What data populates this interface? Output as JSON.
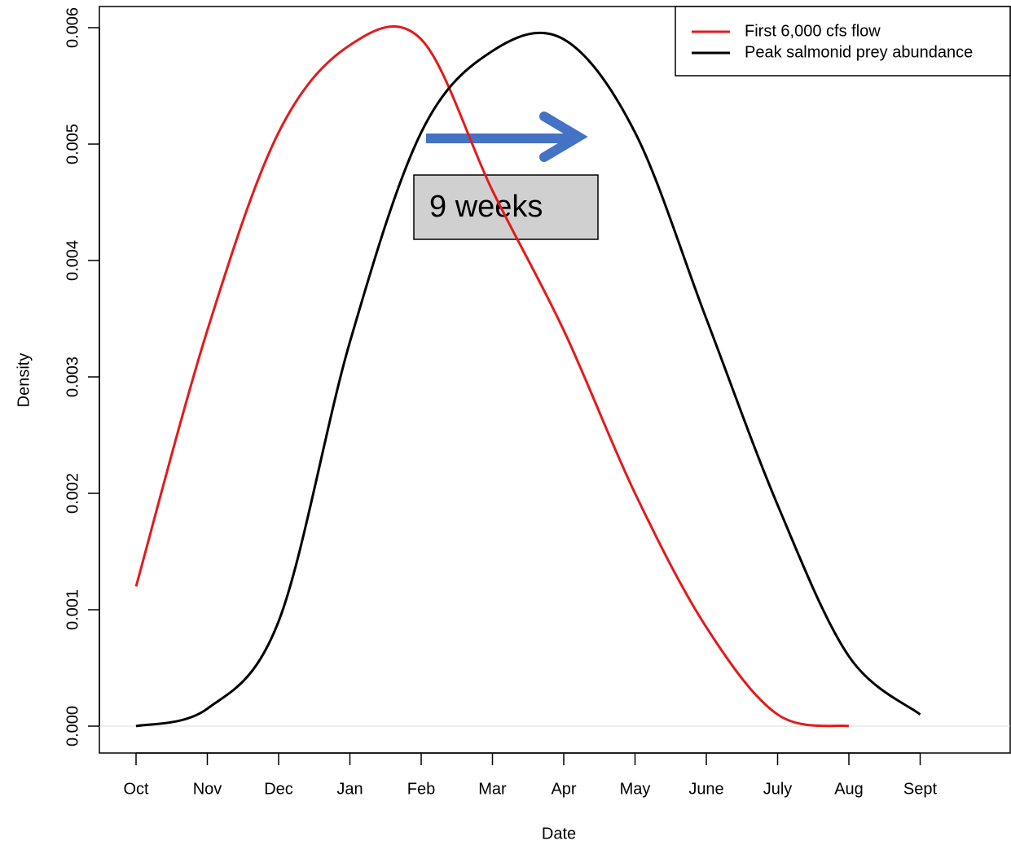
{
  "chart_data": {
    "type": "line",
    "x_label": "Date",
    "y_label": "Density",
    "categories": [
      "Oct",
      "Nov",
      "Dec",
      "Jan",
      "Feb",
      "Mar",
      "Apr",
      "May",
      "June",
      "July",
      "Aug",
      "Sept"
    ],
    "series": [
      {
        "name": "First 6,000 cfs flow",
        "color": "#e31a1c",
        "values": [
          0.0012,
          0.0034,
          0.0051,
          0.00585,
          0.0059,
          0.0046,
          0.0034,
          0.002,
          0.00085,
          0.0001,
          0.0,
          null
        ]
      },
      {
        "name": "Peak salmonid prey abundance",
        "color": "#000000",
        "values": [
          0.0,
          0.00015,
          0.0009,
          0.0033,
          0.0051,
          0.0058,
          0.0059,
          0.0051,
          0.0035,
          0.0019,
          0.0006,
          0.0001
        ]
      }
    ],
    "ylim": [
      0,
      0.006
    ],
    "yticks": [
      {
        "value": 0,
        "label": "0.000"
      },
      {
        "value": 0.001,
        "label": "0.001"
      },
      {
        "value": 0.002,
        "label": "0.002"
      },
      {
        "value": 0.003,
        "label": "0.003"
      },
      {
        "value": 0.004,
        "label": "0.004"
      },
      {
        "value": 0.005,
        "label": "0.005"
      },
      {
        "value": 0.006,
        "label": "0.006"
      }
    ],
    "legend": "topright",
    "annotation": "9 weeks"
  }
}
